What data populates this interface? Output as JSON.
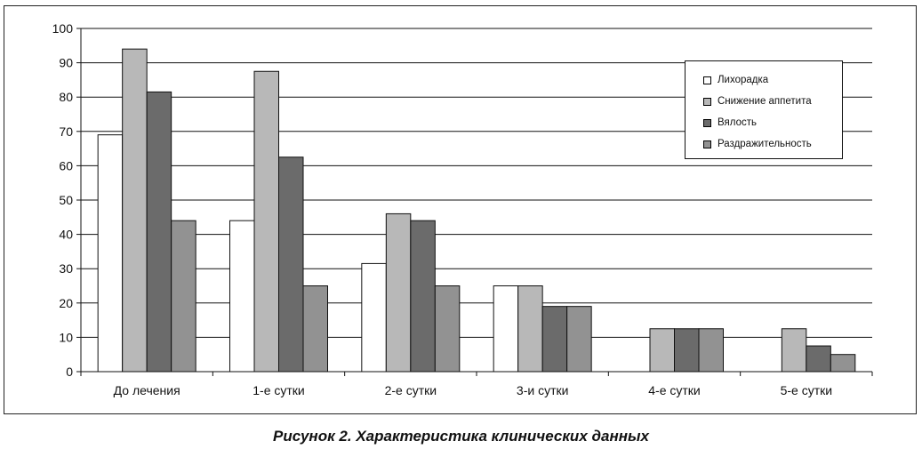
{
  "caption": "Рисунок 2. Характеристика клинических данных",
  "chart_data": {
    "type": "bar",
    "title": "",
    "xlabel": "",
    "ylabel": "",
    "ylim": [
      0,
      100
    ],
    "yticks": [
      0,
      10,
      20,
      30,
      40,
      50,
      60,
      70,
      80,
      90,
      100
    ],
    "grid": true,
    "legend_position": "top-right",
    "categories": [
      "До лечения",
      "1-е сутки",
      "2-е сутки",
      "3-и сутки",
      "4-е сутки",
      "5-е сутки"
    ],
    "series": [
      {
        "name": "Лихорадка",
        "color": "#ffffff",
        "values": [
          69,
          44,
          31.5,
          25,
          0,
          0
        ]
      },
      {
        "name": "Снижение аппетита",
        "color": "#b8b8b8",
        "values": [
          94,
          87.5,
          46,
          25,
          12.5,
          12.5
        ]
      },
      {
        "name": "Вялость",
        "color": "#6b6b6b",
        "values": [
          81.5,
          62.5,
          44,
          19,
          12.5,
          7.5
        ]
      },
      {
        "name": "Раздражительность",
        "color": "#929292",
        "values": [
          44,
          25,
          25,
          19,
          12.5,
          5
        ]
      }
    ]
  }
}
